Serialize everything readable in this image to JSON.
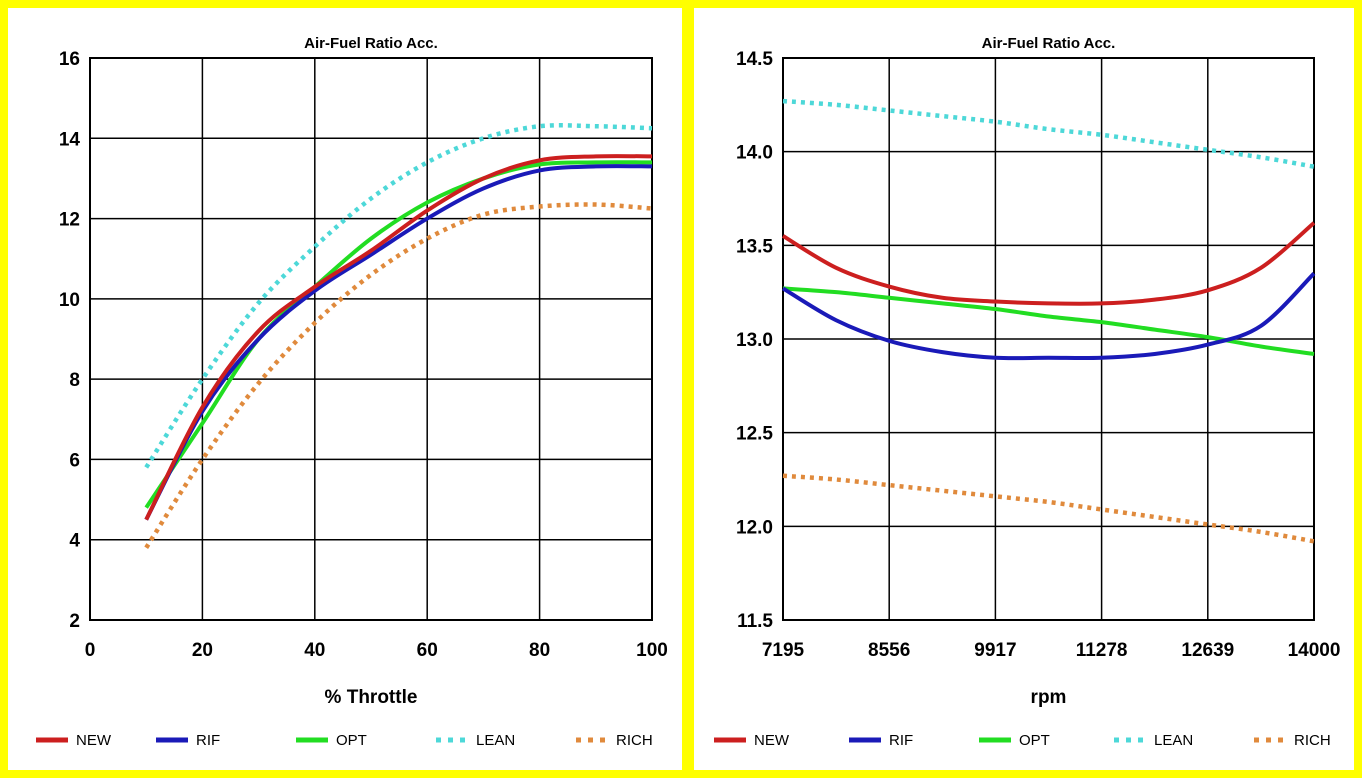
{
  "chart_data": [
    {
      "type": "line",
      "title": "Air-Fuel Ratio Acc.",
      "xlabel": "% Throttle",
      "ylabel": "",
      "xlim": [
        0,
        100
      ],
      "ylim": [
        2,
        16
      ],
      "x_ticks": [
        "0",
        "20",
        "40",
        "60",
        "80",
        "100"
      ],
      "y_ticks": [
        "2",
        "4",
        "6",
        "8",
        "10",
        "12",
        "14",
        "16"
      ],
      "grid": true,
      "legend_position": "bottom",
      "x": [
        10,
        20,
        30,
        40,
        50,
        60,
        70,
        80,
        90,
        100
      ],
      "series": [
        {
          "name": "NEW",
          "color": "#cc1f1f",
          "style": "solid",
          "values": [
            4.5,
            7.3,
            9.2,
            10.3,
            11.2,
            12.2,
            13.0,
            13.45,
            13.55,
            13.55
          ]
        },
        {
          "name": "RIF",
          "color": "#1a1ab8",
          "style": "solid",
          "values": [
            4.5,
            7.2,
            9.0,
            10.2,
            11.1,
            12.0,
            12.75,
            13.2,
            13.3,
            13.3
          ]
        },
        {
          "name": "OPT",
          "color": "#22dd22",
          "style": "solid",
          "values": [
            4.8,
            6.9,
            9.0,
            10.3,
            11.5,
            12.4,
            13.0,
            13.35,
            13.4,
            13.4
          ]
        },
        {
          "name": "LEAN",
          "color": "#4dd8d8",
          "style": "dotted",
          "values": [
            5.8,
            8.0,
            9.9,
            11.3,
            12.5,
            13.4,
            14.0,
            14.3,
            14.3,
            14.25
          ]
        },
        {
          "name": "RICH",
          "color": "#e08a3c",
          "style": "dotted",
          "values": [
            3.8,
            6.0,
            7.9,
            9.4,
            10.6,
            11.5,
            12.1,
            12.3,
            12.35,
            12.25
          ]
        }
      ]
    },
    {
      "type": "line",
      "title": "Air-Fuel Ratio Acc.",
      "xlabel": "rpm",
      "ylabel": "",
      "xlim": [
        7195,
        14000
      ],
      "ylim": [
        11.5,
        14.5
      ],
      "x_ticks": [
        "7195",
        "8556",
        "9917",
        "11278",
        "12639",
        "14000"
      ],
      "y_ticks": [
        "11.5",
        "12.0",
        "12.5",
        "13.0",
        "13.5",
        "14.0",
        "14.5"
      ],
      "grid": true,
      "legend_position": "bottom",
      "x": [
        7195,
        7876,
        8556,
        9237,
        9917,
        10598,
        11278,
        11959,
        12639,
        13320,
        14000
      ],
      "series": [
        {
          "name": "NEW",
          "color": "#cc1f1f",
          "style": "solid",
          "values": [
            13.55,
            13.38,
            13.28,
            13.22,
            13.2,
            13.19,
            13.19,
            13.21,
            13.26,
            13.38,
            13.62
          ]
        },
        {
          "name": "RIF",
          "color": "#1a1ab8",
          "style": "solid",
          "values": [
            13.27,
            13.1,
            12.99,
            12.93,
            12.9,
            12.9,
            12.9,
            12.92,
            12.97,
            13.07,
            13.35
          ]
        },
        {
          "name": "OPT",
          "color": "#22dd22",
          "style": "solid",
          "values": [
            13.27,
            13.25,
            13.22,
            13.19,
            13.16,
            13.12,
            13.09,
            13.05,
            13.01,
            12.96,
            12.92
          ]
        },
        {
          "name": "LEAN",
          "color": "#4dd8d8",
          "style": "dotted",
          "values": [
            14.27,
            14.25,
            14.22,
            14.19,
            14.16,
            14.12,
            14.09,
            14.05,
            14.01,
            13.97,
            13.92
          ]
        },
        {
          "name": "RICH",
          "color": "#e08a3c",
          "style": "dotted",
          "values": [
            12.27,
            12.25,
            12.22,
            12.19,
            12.16,
            12.13,
            12.09,
            12.05,
            12.01,
            11.97,
            11.92
          ]
        }
      ]
    }
  ]
}
